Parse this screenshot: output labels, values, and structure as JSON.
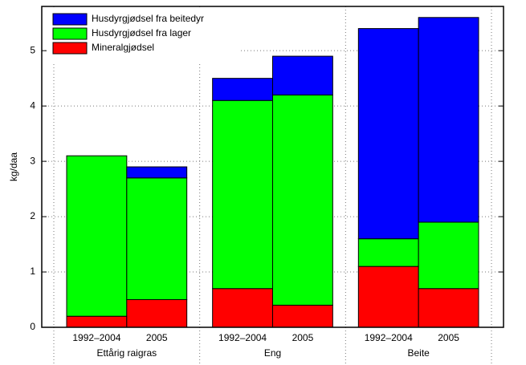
{
  "chart_data": {
    "type": "stacked-bar",
    "y_label": "kg/daa",
    "categories": [
      "1992–2004",
      "2005",
      "1992–2004",
      "2005",
      "1992–2004",
      "2005"
    ],
    "groups": [
      "Ettårig raigras",
      "Eng",
      "Beite"
    ],
    "series": [
      {
        "name": "Mineralgjødsel",
        "color": "#ff0000",
        "values": [
          0.2,
          0.5,
          0.7,
          0.4,
          1.1,
          0.7
        ]
      },
      {
        "name": "Husdyrgjødsel fra lager",
        "color": "#00ff00",
        "values": [
          2.9,
          2.2,
          3.4,
          3.8,
          0.5,
          1.2
        ]
      },
      {
        "name": "Husdyrgjødsel fra beitedyr",
        "color": "#0000ff",
        "values": [
          0,
          0.2,
          0.4,
          0.7,
          3.8,
          3.7
        ]
      }
    ],
    "ylim": [
      0,
      5.8
    ],
    "yticks": [
      0,
      1,
      2,
      3,
      4,
      5
    ],
    "grid": true,
    "legend": "top-left"
  }
}
